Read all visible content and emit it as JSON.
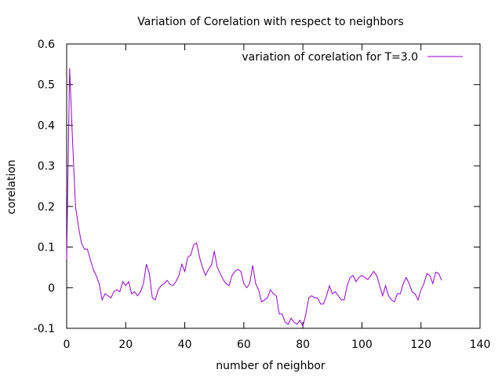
{
  "chart_data": {
    "type": "line",
    "title": "Variation of Corelation with respect to neighbors",
    "xlabel": "number of neighbor",
    "ylabel": "corelation",
    "xlim": [
      0,
      140
    ],
    "ylim": [
      -0.1,
      0.6
    ],
    "x_ticks": [
      0,
      20,
      40,
      60,
      80,
      100,
      120,
      140
    ],
    "y_ticks": [
      -0.1,
      0,
      0.1,
      0.2,
      0.3,
      0.4,
      0.5,
      0.6
    ],
    "x_tick_labels": [
      "0",
      "20",
      "40",
      "60",
      "80",
      "100",
      "120",
      "140"
    ],
    "y_tick_labels": [
      "-0.1",
      "0",
      "0.1",
      "0.2",
      "0.3",
      "0.4",
      "0.5",
      "0.6"
    ],
    "grid": false,
    "legend_position": "top-right",
    "series": [
      {
        "name": "variation of corelation for T=3.0",
        "color": "#9400d3",
        "x": [
          0,
          1,
          2,
          3,
          4,
          5,
          6,
          7,
          8,
          9,
          10,
          11,
          12,
          13,
          14,
          15,
          16,
          17,
          18,
          19,
          20,
          21,
          22,
          23,
          24,
          25,
          26,
          27,
          28,
          29,
          30,
          31,
          32,
          33,
          34,
          35,
          36,
          37,
          38,
          39,
          40,
          41,
          42,
          43,
          44,
          45,
          46,
          47,
          48,
          49,
          50,
          51,
          52,
          53,
          54,
          55,
          56,
          57,
          58,
          59,
          60,
          61,
          62,
          63,
          64,
          65,
          66,
          67,
          68,
          69,
          70,
          71,
          72,
          73,
          74,
          75,
          76,
          77,
          78,
          79,
          80,
          81,
          82,
          83,
          84,
          85,
          86,
          87,
          88,
          89,
          90,
          91,
          92,
          93,
          94,
          95,
          96,
          97,
          98,
          99,
          100,
          101,
          102,
          103,
          104,
          105,
          106,
          107,
          108,
          109,
          110,
          111,
          112,
          113,
          114,
          115,
          116,
          117,
          118,
          119,
          120,
          121,
          122,
          123,
          124,
          125,
          126,
          127
        ],
        "y": [
          0.07,
          0.54,
          0.36,
          0.2,
          0.15,
          0.11,
          0.095,
          0.095,
          0.07,
          0.045,
          0.03,
          0.01,
          -0.03,
          -0.015,
          -0.02,
          -0.025,
          -0.01,
          -0.005,
          -0.01,
          0.015,
          0.005,
          0.015,
          -0.015,
          -0.01,
          -0.02,
          -0.01,
          0.01,
          0.058,
          0.035,
          -0.025,
          -0.03,
          -0.005,
          0.005,
          0.01,
          0.018,
          0.008,
          0.005,
          0.015,
          0.03,
          0.058,
          0.04,
          0.075,
          0.08,
          0.105,
          0.11,
          0.075,
          0.05,
          0.03,
          0.045,
          0.055,
          0.09,
          0.05,
          0.035,
          0.02,
          0.01,
          0.005,
          0.03,
          0.04,
          0.045,
          0.04,
          0.01,
          0.0,
          0.01,
          0.055,
          0.01,
          -0.005,
          -0.035,
          -0.03,
          -0.025,
          -0.005,
          -0.015,
          -0.02,
          -0.065,
          -0.065,
          -0.085,
          -0.09,
          -0.075,
          -0.085,
          -0.09,
          -0.08,
          -0.095,
          -0.065,
          -0.025,
          -0.02,
          -0.025,
          -0.025,
          -0.04,
          -0.04,
          -0.02,
          0.005,
          -0.015,
          -0.01,
          -0.02,
          -0.03,
          -0.03,
          0.005,
          0.025,
          0.03,
          0.015,
          0.025,
          0.03,
          0.025,
          0.02,
          0.03,
          0.04,
          0.03,
          0.005,
          -0.02,
          0.005,
          -0.02,
          -0.03,
          -0.035,
          -0.015,
          -0.015,
          0.01,
          0.025,
          0.01,
          -0.01,
          -0.015,
          -0.03,
          -0.005,
          0.01,
          0.035,
          0.03,
          0.01,
          0.038,
          0.035,
          0.018
        ]
      }
    ]
  }
}
